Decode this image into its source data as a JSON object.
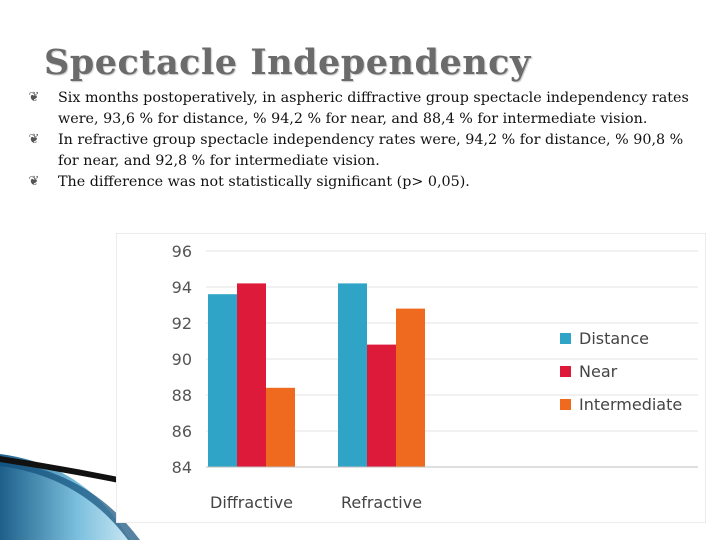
{
  "title": "Spectacle Independency",
  "bullet_icon": "ornament-bullet-icon",
  "bullets": [
    "Six months postoperatively, in aspheric diffractive group spectacle independency rates were, 93,6 % for distance, % 94,2 % for near, and 88,4 % for intermediate vision.",
    "In refractive group spectacle  independency rates were, 94,2 % for distance, % 90,8 % for near, and 92,8 % for intermediate vision.",
    "The difference was not statistically significant (p> 0,05)."
  ],
  "chart_data": {
    "type": "bar",
    "categories": [
      "Diffractive",
      "Refractive"
    ],
    "series": [
      {
        "name": "Distance",
        "values": [
          93.6,
          94.2
        ],
        "color": "#2fa4c6"
      },
      {
        "name": "Near",
        "values": [
          94.2,
          90.8
        ],
        "color": "#de1a3a"
      },
      {
        "name": "Intermediate",
        "values": [
          88.4,
          92.8
        ],
        "color": "#ef6a1f"
      }
    ],
    "ylim": [
      84,
      96
    ],
    "yticks": [
      "84",
      "86",
      "88",
      "90",
      "92",
      "94",
      "96"
    ],
    "title": "",
    "xlabel": "",
    "ylabel": "",
    "grid": true,
    "legend_position": "right"
  }
}
